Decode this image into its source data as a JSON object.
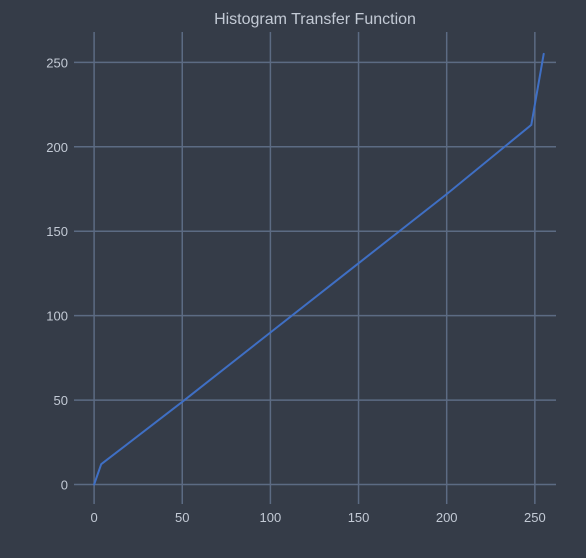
{
  "chart_data": {
    "type": "line",
    "title": "Histogram Transfer Function",
    "xlabel": "",
    "ylabel": "",
    "xlim": [
      -8,
      262
    ],
    "ylim": [
      -8,
      268
    ],
    "x_ticks": [
      0,
      50,
      100,
      150,
      200,
      250
    ],
    "y_ticks": [
      0,
      50,
      100,
      150,
      200,
      250
    ],
    "grid": true,
    "legend": "none",
    "series": [
      {
        "color": "#3f6fc4",
        "x": [
          0,
          4,
          50,
          100,
          150,
          200,
          248,
          255
        ],
        "y": [
          0,
          12,
          49,
          90,
          131,
          172,
          213,
          255
        ]
      }
    ]
  },
  "colors": {
    "background": "#353c48",
    "grid": "#5c6b83",
    "text": "#c3cad5"
  }
}
